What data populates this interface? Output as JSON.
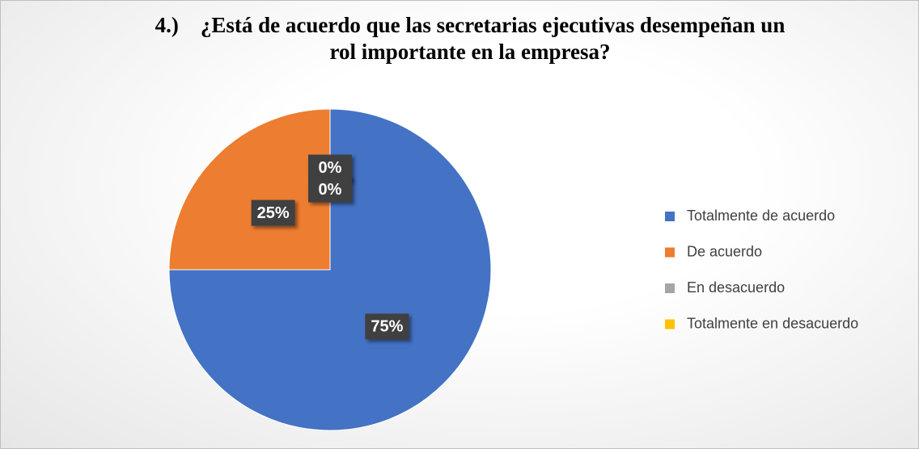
{
  "chart_data": {
    "type": "pie",
    "title": "4.)    ¿Está de acuerdo que las secretarias ejecutivas desempeñan un rol importante en la empresa?",
    "categories": [
      "Totalmente de acuerdo",
      "De acuerdo",
      "En desacuerdo",
      "Totalmente en desacuerdo"
    ],
    "values": [
      75,
      25,
      0,
      0
    ],
    "value_labels": [
      "75%",
      "25%",
      "0%",
      "0%"
    ],
    "colors": [
      "#4472c4",
      "#ed7d31",
      "#a5a5a5",
      "#ffc000"
    ],
    "legend": "right"
  }
}
